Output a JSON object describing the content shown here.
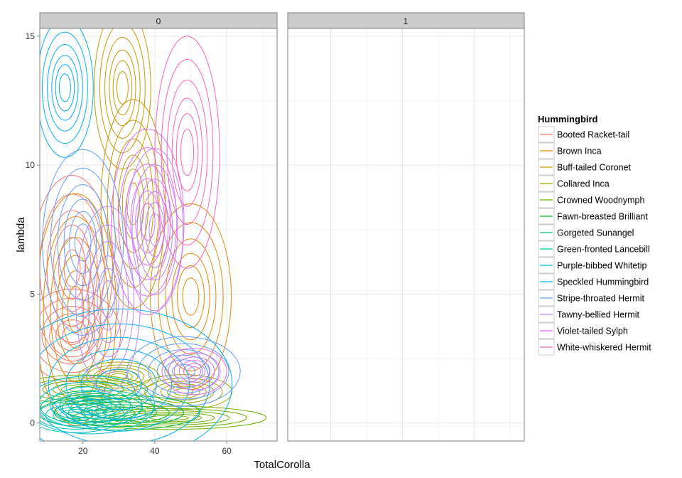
{
  "chart_data": {
    "type": "contour",
    "xlabel": "TotalCorolla",
    "ylabel": "lambda",
    "xlim": [
      8,
      74
    ],
    "ylim": [
      -0.7,
      15.3
    ],
    "x_ticks": [
      20,
      40,
      60
    ],
    "y_ticks": [
      0,
      5,
      10,
      15
    ],
    "grid": true,
    "panels": [
      "0",
      "1"
    ],
    "legend": {
      "title": "Hummingbird",
      "placement": "right"
    },
    "series": [
      {
        "name": "Booted Racket-tail",
        "color": "#F8766D",
        "panel": "0",
        "peaks": [
          {
            "x": 17,
            "y": 6.0,
            "sx": 5,
            "sy": 1.6
          },
          {
            "x": 17,
            "y": 3.4,
            "sx": 6,
            "sy": 0.8
          }
        ]
      },
      {
        "name": "Brown Inca",
        "color": "#E58700",
        "panel": "0",
        "peaks": [
          {
            "x": 50,
            "y": 4.9,
            "sx": 5,
            "sy": 1.6
          },
          {
            "x": 18,
            "y": 4.4,
            "sx": 5,
            "sy": 2.0
          }
        ]
      },
      {
        "name": "Buff-tailed Coronet",
        "color": "#C99800",
        "panel": "0",
        "peaks": [
          {
            "x": 31,
            "y": 13.0,
            "sx": 3.5,
            "sy": 1.4
          },
          {
            "x": 34,
            "y": 8.5,
            "sx": 4,
            "sy": 1.8
          }
        ]
      },
      {
        "name": "Collared Inca",
        "color": "#A3A500",
        "panel": "0",
        "peaks": [
          {
            "x": 30,
            "y": 1.8,
            "sx": 5,
            "sy": 0.25
          },
          {
            "x": 48,
            "y": 1.2,
            "sx": 6,
            "sy": 0.3
          }
        ]
      },
      {
        "name": "Crowned Woodnymph",
        "color": "#6BB100",
        "panel": "0",
        "peaks": [
          {
            "x": 20,
            "y": 1.3,
            "sx": 8,
            "sy": 0.25
          },
          {
            "x": 44,
            "y": 0.2,
            "sx": 12,
            "sy": 0.2
          }
        ]
      },
      {
        "name": "Fawn-breasted Brilliant",
        "color": "#00BA38",
        "panel": "0",
        "peaks": [
          {
            "x": 30,
            "y": 0.4,
            "sx": 10,
            "sy": 0.3
          }
        ]
      },
      {
        "name": "Gorgeted Sunangel",
        "color": "#00BF7D",
        "panel": "0",
        "peaks": [
          {
            "x": 24,
            "y": 0.6,
            "sx": 7,
            "sy": 0.3
          }
        ]
      },
      {
        "name": "Green-fronted Lancebill",
        "color": "#00C0AF",
        "panel": "0",
        "peaks": [
          {
            "x": 18,
            "y": 0.3,
            "sx": 6,
            "sy": 0.3
          }
        ]
      },
      {
        "name": "Purple-bibbed Whitetip",
        "color": "#00BCD8",
        "panel": "0",
        "peaks": [
          {
            "x": 22,
            "y": 0.7,
            "sx": 8,
            "sy": 0.5
          }
        ]
      },
      {
        "name": "Speckled Hummingbird",
        "color": "#00B0F6",
        "panel": "0",
        "peaks": [
          {
            "x": 15,
            "y": 13.0,
            "sx": 3.5,
            "sy": 1.2
          },
          {
            "x": 30,
            "y": 1.5,
            "sx": 14,
            "sy": 1.3
          }
        ]
      },
      {
        "name": "Stripe-throated Hermit",
        "color": "#619CFF",
        "panel": "0",
        "peaks": [
          {
            "x": 20,
            "y": 7.0,
            "sx": 5,
            "sy": 1.6
          },
          {
            "x": 48,
            "y": 2.0,
            "sx": 7,
            "sy": 0.6
          }
        ]
      },
      {
        "name": "Tawny-bellied Hermit",
        "color": "#B983FF",
        "panel": "0",
        "peaks": [
          {
            "x": 27,
            "y": 4.8,
            "sx": 4,
            "sy": 1.6
          },
          {
            "x": 40,
            "y": 7.5,
            "sx": 3.5,
            "sy": 1.4
          }
        ]
      },
      {
        "name": "Violet-tailed Sylph",
        "color": "#E76BF3",
        "panel": "0",
        "peaks": [
          {
            "x": 51,
            "y": 2.0,
            "sx": 4,
            "sy": 0.4
          },
          {
            "x": 38,
            "y": 7.8,
            "sx": 4.5,
            "sy": 1.6
          }
        ]
      },
      {
        "name": "White-whiskered Hermit",
        "color": "#FF62BC",
        "panel": "0",
        "peaks": [
          {
            "x": 49,
            "y": 10.5,
            "sx": 4,
            "sy": 2.0
          }
        ]
      }
    ]
  }
}
